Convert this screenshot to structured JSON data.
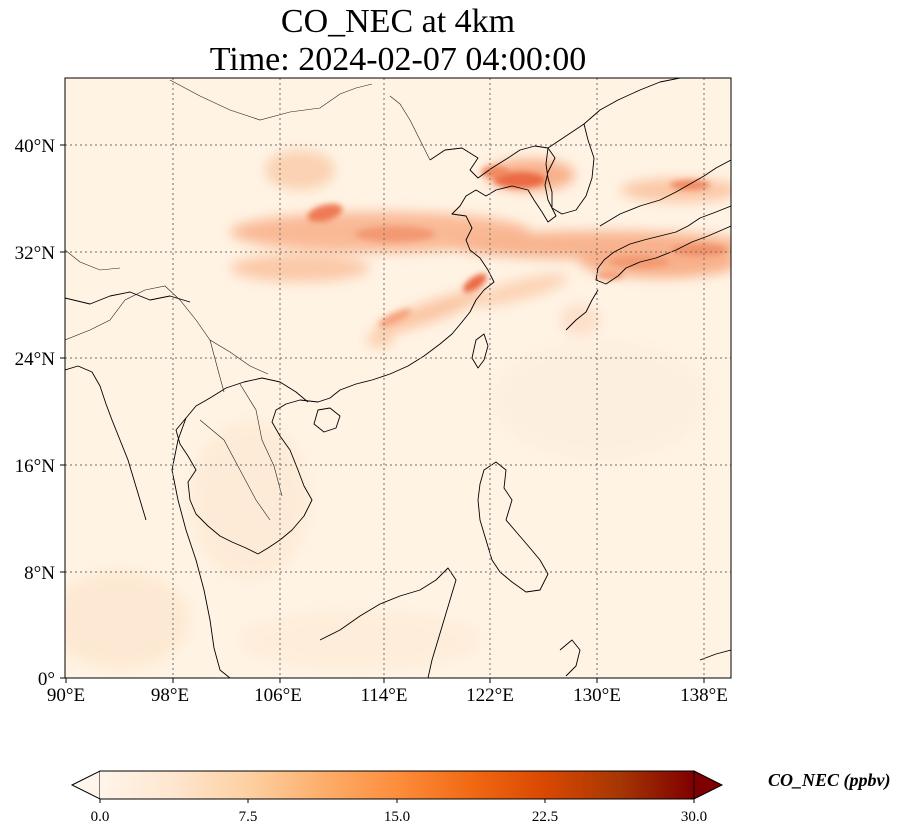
{
  "title": {
    "line1": "CO_NEC at 4km",
    "line2": "Time: 2024-02-07 04:00:00"
  },
  "map": {
    "extent": {
      "lon": [
        90,
        139.5
      ],
      "lat": [
        0,
        44.5
      ]
    },
    "lon_ticks": [
      90,
      98,
      106,
      114,
      122,
      130,
      138
    ],
    "lon_tick_labels": [
      "90°E",
      "98°E",
      "106°E",
      "114°E",
      "122°E",
      "130°E",
      "138°E"
    ],
    "lat_ticks": [
      0,
      8,
      16,
      24,
      32,
      40
    ],
    "lat_tick_labels": [
      "0°",
      "8°N",
      "16°N",
      "24°N",
      "32°N",
      "40°N"
    ],
    "gridlines": true,
    "gridline_style": "dotted",
    "plume_color_max": "#e8543a"
  },
  "colorbar": {
    "label": "CO_NEC (ppbv)",
    "range": [
      0,
      30
    ],
    "ticks": [
      "0.0",
      "7.5",
      "15.0",
      "22.5",
      "30.0"
    ],
    "extend": "both",
    "colors": [
      "#fff5eb",
      "#fee6ce",
      "#fdd0a2",
      "#fdae6b",
      "#fd8d3c",
      "#f16913",
      "#d94801",
      "#a63603",
      "#7f0000"
    ]
  }
}
